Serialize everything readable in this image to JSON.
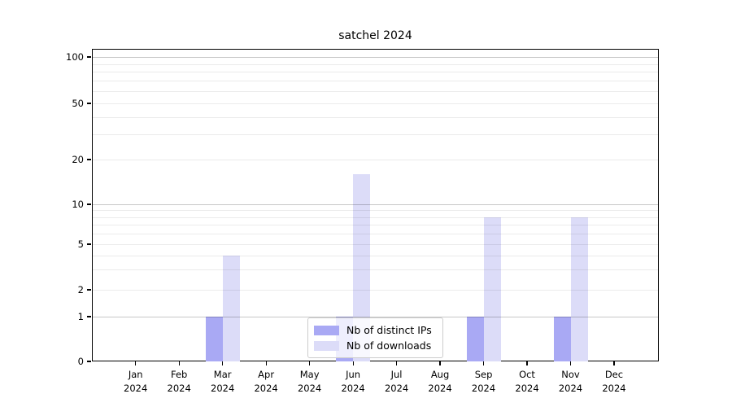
{
  "chart_data": {
    "type": "bar",
    "title": "satchel 2024",
    "x_axis": {
      "months": [
        {
          "month": "Jan",
          "year": "2024"
        },
        {
          "month": "Feb",
          "year": "2024"
        },
        {
          "month": "Mar",
          "year": "2024"
        },
        {
          "month": "Apr",
          "year": "2024"
        },
        {
          "month": "May",
          "year": "2024"
        },
        {
          "month": "Jun",
          "year": "2024"
        },
        {
          "month": "Jul",
          "year": "2024"
        },
        {
          "month": "Aug",
          "year": "2024"
        },
        {
          "month": "Sep",
          "year": "2024"
        },
        {
          "month": "Oct",
          "year": "2024"
        },
        {
          "month": "Nov",
          "year": "2024"
        },
        {
          "month": "Dec",
          "year": "2024"
        }
      ]
    },
    "y_axis": {
      "scale": "symlog",
      "tick_labels": [
        0,
        1,
        2,
        5,
        10,
        20,
        50,
        100
      ],
      "major_gridlines": [
        1,
        10,
        100
      ],
      "minor_gridlines": [
        2,
        3,
        4,
        5,
        6,
        7,
        8,
        9,
        20,
        30,
        40,
        50,
        60,
        70,
        80,
        90
      ],
      "ylim": [
        0,
        110
      ],
      "grid": "on"
    },
    "series": [
      {
        "name": "Nb of distinct IPs",
        "color": "#a9a9f4",
        "values": [
          null,
          null,
          1,
          null,
          null,
          1,
          null,
          null,
          1,
          null,
          1,
          null
        ]
      },
      {
        "name": "Nb of downloads",
        "color": "#dcdcf8",
        "values": [
          null,
          null,
          4,
          null,
          null,
          16,
          null,
          null,
          8,
          null,
          8,
          null
        ]
      }
    ],
    "legend": {
      "position": "inside-bottom-center",
      "entries": [
        "Nb of distinct IPs",
        "Nb of downloads"
      ]
    }
  }
}
